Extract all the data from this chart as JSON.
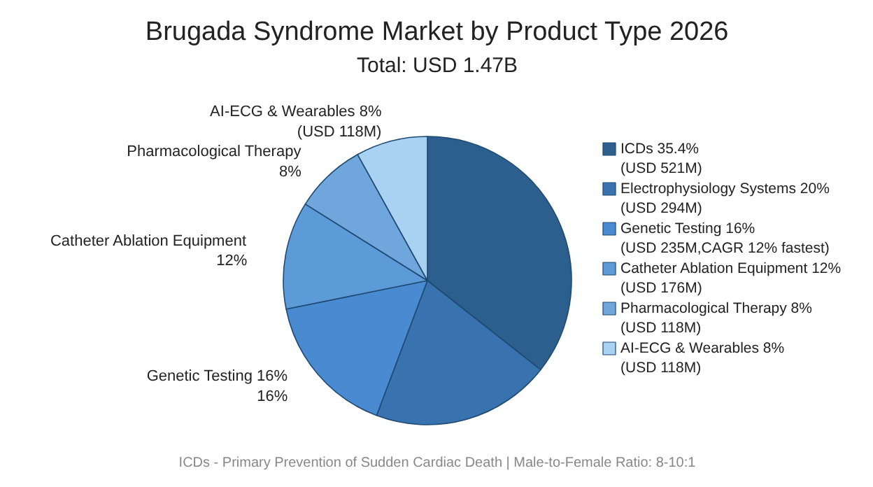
{
  "chart_data": {
    "type": "pie",
    "title": "Brugada Syndrome Market by Product Type 2026",
    "subtitle": "Total: USD 1.47B",
    "categories": [
      "ICDs 35.4%\n(USD 521M)",
      "Electrophysiology Systems 20%\n(USD 294M)",
      "Genetic Testing 16%\n(USD 235M,CAGR 12% fastest)",
      "Catheter Ablation Equipment 12%\n(USD 176M)",
      "Pharmacological Therapy 8%\n(USD 118M)",
      "AI-ECG & Wearables 8%\n(USD 118M)"
    ],
    "values": [
      35.4,
      20,
      16,
      12,
      8,
      8
    ],
    "colors": [
      "#2d5f8e",
      "#3873b0",
      "#4a8ad0",
      "#5d9bd8",
      "#6fa7dd",
      "#a8d1f2"
    ],
    "legend": "right",
    "annotations": [
      {
        "text": "Genetic Testing 16%\n16%",
        "x": "Genetic Testing 16%\n(USD 235M,CAGR 12% fastest)"
      },
      {
        "text": "Catheter Ablation Equipment\n12%",
        "x": "Catheter Ablation Equipment 12%\n(USD 176M)"
      },
      {
        "text": "Pharmacological Therapy\n8%",
        "x": "Pharmacological Therapy 8%\n(USD 118M)"
      },
      {
        "text": "AI-ECG & Wearables 8%\n(USD 118M)",
        "x": "AI-ECG & Wearables 8%\n(USD 118M)"
      },
      "ICDs - Primary Prevention of Sudden Cardiac Death | Male-to-Female Ratio: 8-10:1"
    ]
  }
}
